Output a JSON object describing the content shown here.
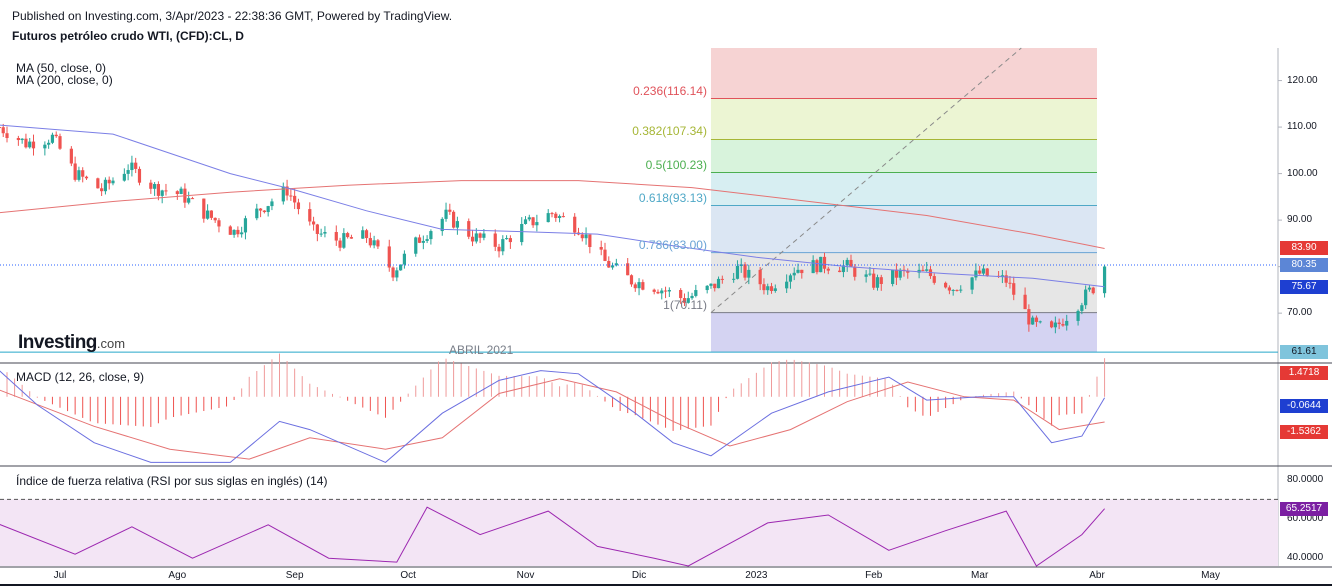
{
  "header": {
    "published": "Published on Investing.com, 3/Apr/2023 - 22:38:36 GMT, Powered by TradingView.",
    "symbol": "Futuros petróleo crudo WTI, (CFD):CL, D"
  },
  "legend": {
    "ma50": "MA (50, close, 0)",
    "ma200": "MA (200, close, 0)"
  },
  "logo": {
    "main": "Investing",
    "domain": ".com"
  },
  "watermark": "ABRIL 2021",
  "colors": {
    "up": "#26a69a",
    "down": "#ef5350",
    "ma50": "#7b7fe6",
    "ma200": "#e57373",
    "macd": "#6b6fe0",
    "signal": "#e57373",
    "rsi": "#9c27b0",
    "rsi_bg": "#f3e5f5"
  },
  "x_axis": {
    "labels": [
      "Jul",
      "Ago",
      "Sep",
      "Oct",
      "Nov",
      "Dic",
      "2023",
      "Feb",
      "Mar",
      "Abr",
      "May"
    ],
    "start": "2022-06-14",
    "label_dates": [
      "2022-07-01",
      "2022-08-01",
      "2022-09-01",
      "2022-10-01",
      "2022-11-01",
      "2022-12-01",
      "2023-01-01",
      "2023-02-01",
      "2023-03-01",
      "2023-04-01",
      "2023-05-01"
    ]
  },
  "price_axis": {
    "labels": [
      "120.00",
      "110.00",
      "100.00",
      "90.00",
      "80.00",
      "70.00"
    ],
    "ticks": [
      120,
      110,
      100,
      90,
      80,
      70
    ],
    "range": [
      59.5,
      127
    ]
  },
  "badges": {
    "ma200": "83.90",
    "last": "80.35",
    "ma50": "75.67",
    "low": "61.61",
    "macd_hist": "1.4718",
    "macd": "-0.0644",
    "signal": "-1.5362",
    "rsi": "65.2517"
  },
  "macd": {
    "title": "MACD (12, 26, close, 9)",
    "axis_labels": [
      "-2.0000"
    ],
    "axis_ticks": [
      -2
    ],
    "range": [
      -4.1,
      2.0
    ]
  },
  "rsi": {
    "title": "Índice de fuerza relativa (RSI por sus siglas en inglés) (14)",
    "axis_labels": [
      "80.0000",
      "60.0000",
      "40.0000"
    ],
    "axis_ticks": [
      80,
      60,
      40
    ],
    "range": [
      36,
      86
    ],
    "band": [
      30,
      70
    ]
  },
  "fibonacci": {
    "start": "2022-12-20",
    "end": "2023-04-01",
    "levels": [
      {
        "label": "0.236(116.14)",
        "price": 116.14,
        "color": "#e0525a",
        "fill": "#f6d3d3"
      },
      {
        "label": "0.382(107.34)",
        "price": 107.34,
        "color": "#a6b636",
        "fill": "#ecf5d3"
      },
      {
        "label": "0.5(100.23)",
        "price": 100.23,
        "color": "#4caf50",
        "fill": "#d8f3dc"
      },
      {
        "label": "0.618(93.13)",
        "price": 93.13,
        "color": "#4fa8c7",
        "fill": "#d7eef2"
      },
      {
        "label": "0.786(83.00)",
        "price": 83.0,
        "color": "#6aa3d5",
        "fill": "#dbe6f3"
      },
      {
        "label": "1(70.11)",
        "price": 70.11,
        "color": "#787b86",
        "fill": "#e6e6e6"
      }
    ],
    "top_price": 127,
    "bottom_fill": "#d4d3f2",
    "bottom_price": 61.61
  },
  "chart_data": {
    "type": "candlestick",
    "title": "Futuros petróleo crudo WTI, (CFD):CL, D",
    "indicators": [
      "MA (50, close, 0)",
      "MA (200, close, 0)",
      "MACD (12, 26, close, 9)",
      "RSI (14)"
    ],
    "last_price": 80.35,
    "ma50_last": 75.67,
    "ma200_last": 83.9,
    "period_low_marker": 61.61,
    "close_path": [
      [
        "2022-06-15",
        110.0
      ],
      [
        "2022-06-22",
        106.5
      ],
      [
        "2022-06-29",
        107.8
      ],
      [
        "2022-07-05",
        100.0
      ],
      [
        "2022-07-12",
        96.5
      ],
      [
        "2022-07-19",
        101.5
      ],
      [
        "2022-07-26",
        97.0
      ],
      [
        "2022-08-02",
        95.5
      ],
      [
        "2022-08-09",
        91.0
      ],
      [
        "2022-08-16",
        87.5
      ],
      [
        "2022-08-23",
        92.5
      ],
      [
        "2022-08-30",
        96.5
      ],
      [
        "2022-09-06",
        87.5
      ],
      [
        "2022-09-13",
        85.5
      ],
      [
        "2022-09-20",
        86.5
      ],
      [
        "2022-09-27",
        79.0
      ],
      [
        "2022-10-04",
        86.0
      ],
      [
        "2022-10-11",
        91.0
      ],
      [
        "2022-10-18",
        86.5
      ],
      [
        "2022-10-25",
        84.5
      ],
      [
        "2022-11-01",
        89.0
      ],
      [
        "2022-11-08",
        91.5
      ],
      [
        "2022-11-15",
        88.5
      ],
      [
        "2022-11-22",
        81.0
      ],
      [
        "2022-11-29",
        77.0
      ],
      [
        "2022-12-06",
        75.5
      ],
      [
        "2022-12-13",
        73.0
      ],
      [
        "2022-12-20",
        75.5
      ],
      [
        "2022-12-27",
        79.5
      ],
      [
        "2023-01-04",
        75.5
      ],
      [
        "2023-01-11",
        79.5
      ],
      [
        "2023-01-18",
        80.5
      ],
      [
        "2023-01-25",
        80.0
      ],
      [
        "2023-02-01",
        76.5
      ],
      [
        "2023-02-08",
        78.5
      ],
      [
        "2023-02-15",
        78.5
      ],
      [
        "2023-02-22",
        75.5
      ],
      [
        "2023-03-01",
        78.5
      ],
      [
        "2023-03-08",
        77.0
      ],
      [
        "2023-03-15",
        67.5
      ],
      [
        "2023-03-20",
        66.0
      ],
      [
        "2023-03-24",
        69.5
      ],
      [
        "2023-03-31",
        75.5
      ],
      [
        "2023-04-03",
        80.35
      ]
    ],
    "ma50_path": [
      [
        "2022-06-14",
        110.5
      ],
      [
        "2022-07-15",
        108.5
      ],
      [
        "2022-08-15",
        100.0
      ],
      [
        "2022-09-01",
        96.5
      ],
      [
        "2022-09-20",
        92.0
      ],
      [
        "2022-10-10",
        88.0
      ],
      [
        "2022-11-01",
        87.5
      ],
      [
        "2022-11-20",
        87.0
      ],
      [
        "2022-12-10",
        84.5
      ],
      [
        "2023-01-01",
        82.0
      ],
      [
        "2023-01-25",
        80.0
      ],
      [
        "2023-02-20",
        78.5
      ],
      [
        "2023-03-15",
        77.5
      ],
      [
        "2023-04-03",
        75.67
      ]
    ],
    "ma200_path": [
      [
        "2022-06-14",
        91.5
      ],
      [
        "2022-07-15",
        94.0
      ],
      [
        "2022-08-15",
        96.0
      ],
      [
        "2022-09-15",
        97.5
      ],
      [
        "2022-10-15",
        98.5
      ],
      [
        "2022-11-15",
        98.5
      ],
      [
        "2022-12-15",
        97.0
      ],
      [
        "2023-01-15",
        94.0
      ],
      [
        "2023-02-15",
        91.0
      ],
      [
        "2023-03-15",
        87.0
      ],
      [
        "2023-04-03",
        83.9
      ]
    ],
    "macd_path": [
      [
        "2022-06-14",
        1.8
      ],
      [
        "2022-06-25",
        -0.5
      ],
      [
        "2022-07-10",
        -2.8
      ],
      [
        "2022-07-25",
        -4.0
      ],
      [
        "2022-08-15",
        -4.0
      ],
      [
        "2022-08-28",
        -1.5
      ],
      [
        "2022-09-05",
        -2.0
      ],
      [
        "2022-09-25",
        -4.0
      ],
      [
        "2022-10-10",
        -1.0
      ],
      [
        "2022-10-25",
        1.0
      ],
      [
        "2022-11-05",
        1.6
      ],
      [
        "2022-11-15",
        1.4
      ],
      [
        "2022-11-30",
        -1.0
      ],
      [
        "2022-12-10",
        -2.8
      ],
      [
        "2022-12-20",
        -3.6
      ],
      [
        "2023-01-05",
        -1.0
      ],
      [
        "2023-01-20",
        0.3
      ],
      [
        "2023-02-05",
        1.2
      ],
      [
        "2023-02-15",
        -0.2
      ],
      [
        "2023-03-01",
        0.0
      ],
      [
        "2023-03-10",
        0.0
      ],
      [
        "2023-03-20",
        -2.8
      ],
      [
        "2023-03-28",
        -2.4
      ],
      [
        "2023-04-03",
        -0.0644
      ]
    ],
    "signal_path": [
      [
        "2022-06-14",
        0.5
      ],
      [
        "2022-07-10",
        -1.8
      ],
      [
        "2022-07-30",
        -3.2
      ],
      [
        "2022-08-20",
        -3.8
      ],
      [
        "2022-09-05",
        -2.5
      ],
      [
        "2022-09-25",
        -3.2
      ],
      [
        "2022-10-10",
        -2.5
      ],
      [
        "2022-10-25",
        0.2
      ],
      [
        "2022-11-10",
        1.1
      ],
      [
        "2022-11-25",
        0.3
      ],
      [
        "2022-12-10",
        -1.5
      ],
      [
        "2022-12-25",
        -3.0
      ],
      [
        "2023-01-10",
        -2.0
      ],
      [
        "2023-01-25",
        -0.3
      ],
      [
        "2023-02-10",
        0.9
      ],
      [
        "2023-02-25",
        0.0
      ],
      [
        "2023-03-10",
        -0.2
      ],
      [
        "2023-03-22",
        -2.0
      ],
      [
        "2023-04-03",
        -1.5362
      ]
    ],
    "macd_histogram_last": 1.4718,
    "rsi_path": [
      [
        "2022-06-14",
        58
      ],
      [
        "2022-07-05",
        42
      ],
      [
        "2022-07-20",
        56
      ],
      [
        "2022-08-05",
        40
      ],
      [
        "2022-08-25",
        57
      ],
      [
        "2022-09-10",
        40
      ],
      [
        "2022-09-28",
        38
      ],
      [
        "2022-10-06",
        66
      ],
      [
        "2022-10-20",
        52
      ],
      [
        "2022-11-07",
        64
      ],
      [
        "2022-11-20",
        46
      ],
      [
        "2022-12-05",
        40
      ],
      [
        "2022-12-14",
        36
      ],
      [
        "2023-01-04",
        58
      ],
      [
        "2023-01-20",
        62
      ],
      [
        "2023-02-05",
        44
      ],
      [
        "2023-02-20",
        54
      ],
      [
        "2023-03-08",
        64
      ],
      [
        "2023-03-16",
        36
      ],
      [
        "2023-03-28",
        52
      ],
      [
        "2023-04-03",
        65.2517
      ]
    ]
  }
}
